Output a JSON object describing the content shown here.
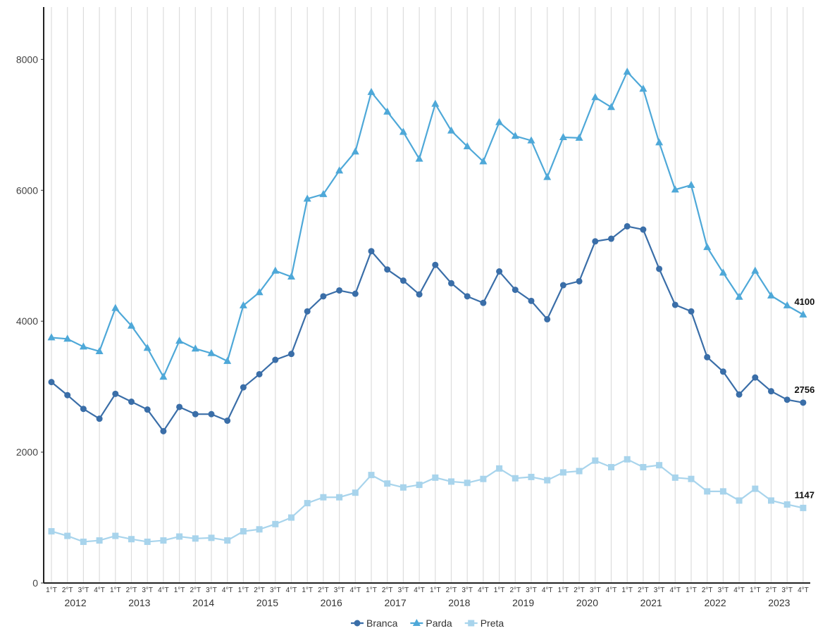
{
  "chart_data": {
    "type": "line",
    "categories": [
      "1°T",
      "2°T",
      "3°T",
      "4°T",
      "1°T",
      "2°T",
      "3°T",
      "4°T",
      "1°T",
      "2°T",
      "3°T",
      "4°T",
      "1°T",
      "2°T",
      "3°T",
      "4°T",
      "1°T",
      "2°T",
      "3°T",
      "4°T",
      "1°T",
      "2°T",
      "3°T",
      "4°T",
      "1°T",
      "2°T",
      "3°T",
      "4°T",
      "1°T",
      "2°T",
      "3°T",
      "4°T",
      "1°T",
      "2°T",
      "3°T",
      "4°T",
      "1°T",
      "2°T",
      "3°T",
      "4°T",
      "1°T",
      "2°T",
      "3°T",
      "4°T",
      "1°T",
      "2°T",
      "3°T",
      "4°T"
    ],
    "years": [
      "2012",
      "2013",
      "2014",
      "2015",
      "2016",
      "2017",
      "2018",
      "2019",
      "2020",
      "2021",
      "2022",
      "2023"
    ],
    "series": [
      {
        "name": "Branca",
        "color": "#3a6ea8",
        "marker": "circle",
        "values": [
          3070,
          2870,
          2660,
          2510,
          2890,
          2770,
          2650,
          2320,
          2690,
          2580,
          2580,
          2480,
          2990,
          3190,
          3410,
          3500,
          4150,
          4380,
          4470,
          4420,
          5070,
          4790,
          4620,
          4410,
          4860,
          4580,
          4380,
          4280,
          4760,
          4480,
          4310,
          4030,
          4550,
          4610,
          5220,
          5260,
          5450,
          5400,
          4800,
          4250,
          4150,
          3450,
          3230,
          2880,
          3140,
          2930,
          2800,
          2756
        ]
      },
      {
        "name": "Parda",
        "color": "#4ea8d8",
        "marker": "triangle",
        "values": [
          3750,
          3730,
          3610,
          3540,
          4200,
          3930,
          3590,
          3150,
          3700,
          3580,
          3510,
          3390,
          4240,
          4440,
          4770,
          4680,
          5870,
          5940,
          6300,
          6590,
          7500,
          7200,
          6890,
          6480,
          7320,
          6910,
          6670,
          6440,
          7040,
          6830,
          6760,
          6200,
          6810,
          6800,
          7420,
          7270,
          7810,
          7550,
          6730,
          6010,
          6080,
          5130,
          4740,
          4370,
          4770,
          4390,
          4240,
          4100
        ]
      },
      {
        "name": "Preta",
        "color": "#a8d4ec",
        "marker": "square",
        "values": [
          790,
          720,
          630,
          650,
          720,
          670,
          630,
          650,
          710,
          680,
          690,
          650,
          790,
          820,
          900,
          1000,
          1220,
          1310,
          1310,
          1380,
          1650,
          1520,
          1460,
          1500,
          1610,
          1550,
          1530,
          1590,
          1750,
          1600,
          1620,
          1570,
          1690,
          1710,
          1870,
          1770,
          1890,
          1770,
          1800,
          1610,
          1590,
          1400,
          1400,
          1260,
          1440,
          1260,
          1200,
          1147
        ]
      }
    ],
    "ylim": [
      0,
      8800
    ],
    "yticks": [
      0,
      2000,
      4000,
      6000,
      8000
    ],
    "grid": "vertical",
    "legend": "bottom"
  }
}
